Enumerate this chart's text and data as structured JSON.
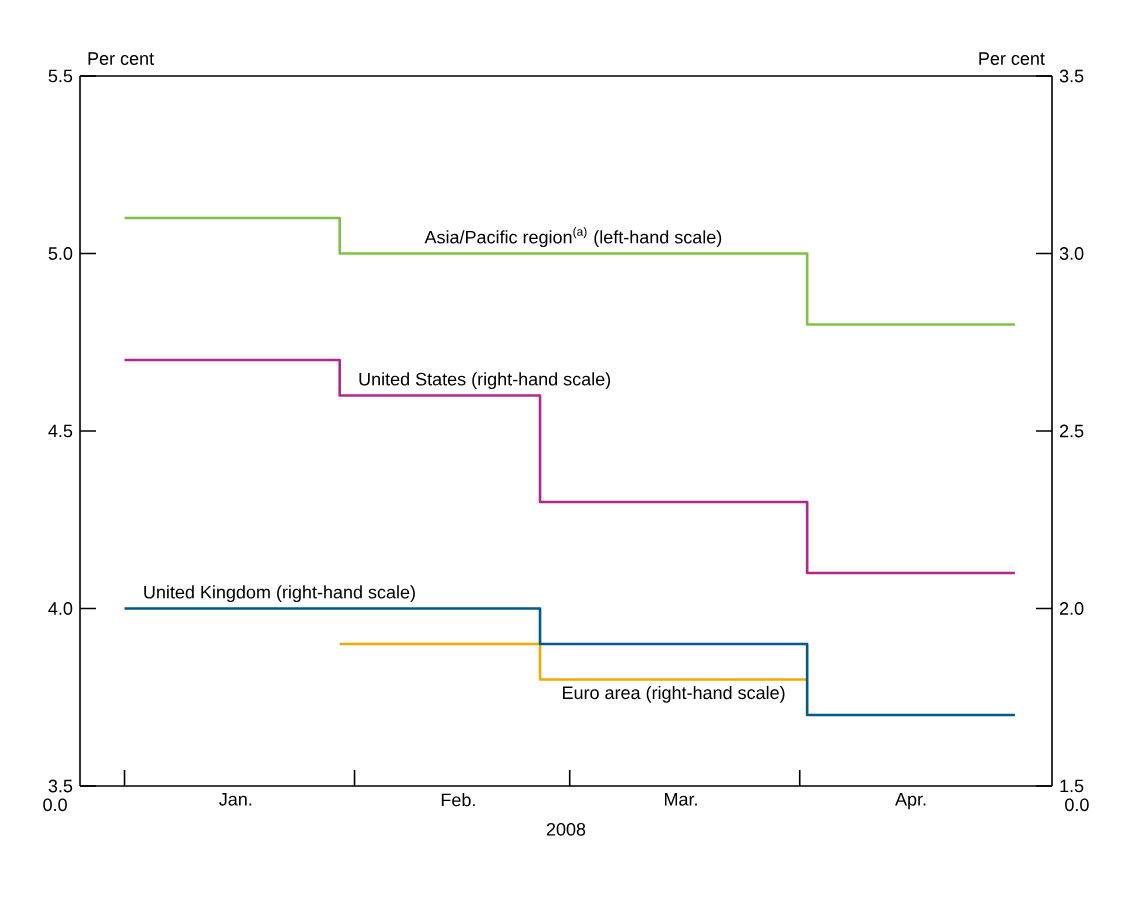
{
  "chart_data": {
    "type": "step",
    "ylabel": "Per cent",
    "y2label": "Per cent",
    "xlabel": "2008",
    "x": [
      "2008-01-01",
      "2008-01-30",
      "2008-02-26",
      "2008-04-02",
      "2008-04-30"
    ],
    "xlim": [
      "2007-12-26",
      "2008-05-05"
    ],
    "xticks": [
      {
        "value": "2008-01-01",
        "label": null
      },
      {
        "value": "2008-01-16",
        "label": "Jan."
      },
      {
        "value": "2008-02-01",
        "label": null
      },
      {
        "value": "2008-02-15",
        "label": "Feb."
      },
      {
        "value": "2008-03-01",
        "label": null
      },
      {
        "value": "2008-03-16",
        "label": "Mar."
      },
      {
        "value": "2008-04-01",
        "label": null
      },
      {
        "value": "2008-04-16",
        "label": "Apr."
      }
    ],
    "ylim": [
      3.5,
      5.5
    ],
    "yticks": [
      3.5,
      {
        "value": 4,
        "label": "4.0"
      },
      4.5,
      {
        "value": 5,
        "label": "5.0"
      },
      5.5
    ],
    "y2lim": [
      1.5,
      3.5
    ],
    "y2ticks": [
      1.5,
      {
        "value": 2,
        "label": "2.0"
      },
      2.5,
      {
        "value": 3,
        "label": "3.0"
      },
      3.5
    ],
    "grid": false,
    "marker": "none",
    "series": [
      {
        "name": "Asia/Pacific region$^{(a)}$ (left-hand scale)",
        "color": "#7dc242",
        "x": [
          "2008-01-01",
          "2008-01-30",
          "2008-04-02",
          "2008-04-30"
        ],
        "values": [
          5.1,
          5.0,
          4.8,
          4.8
        ]
      },
      {
        "name": "United States (right-hand scale)",
        "color": "#b5258f",
        "axis": "y2",
        "values": [
          2.7,
          2.6,
          2.3,
          2.1,
          2.1
        ]
      },
      {
        "name": "Euro area (right-hand scale)",
        "color": "#f5a800",
        "axis": "y2",
        "x": [
          "2008-01-30",
          "2008-02-26",
          "2008-04-02"
        ],
        "values": [
          1.9,
          1.8,
          1.8
        ]
      },
      {
        "name": "United Kingdom (right-hand scale)",
        "color": "#005a8c",
        "axis": "y2",
        "x": [
          "2008-01-01",
          "2008-02-26",
          "2008-04-02",
          "2008-04-30"
        ],
        "values": [
          2.0,
          1.9,
          1.7,
          1.7
        ]
      }
    ],
    "annotations": [
      "0.0",
      "0.0"
    ]
  }
}
